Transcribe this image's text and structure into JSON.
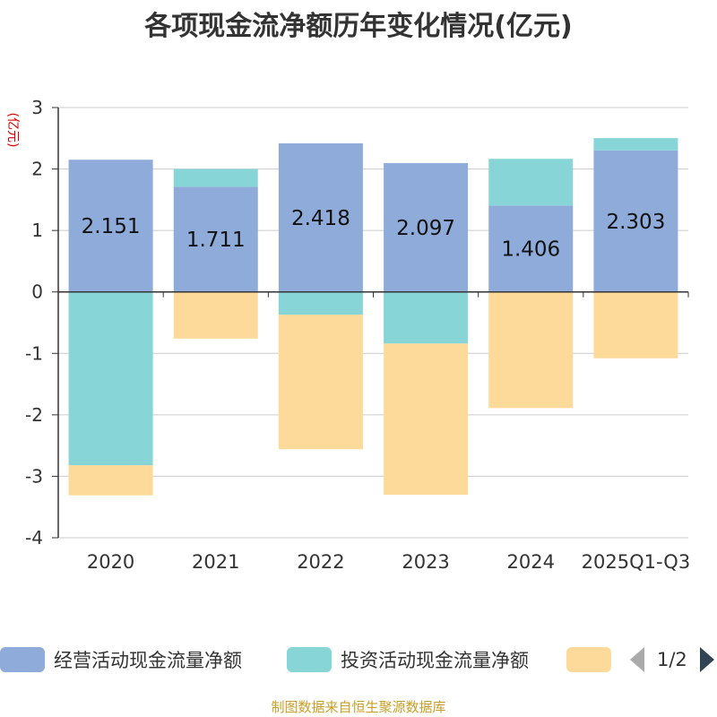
{
  "chart_data": {
    "type": "bar",
    "stacked": true,
    "title": "各项现金流净额历年变化情况(亿元)",
    "ylabel": "(亿元)",
    "xlabel": "",
    "ylim": [
      -4,
      3
    ],
    "yticks": [
      3,
      2,
      1,
      0,
      -1,
      -2,
      -3,
      -4
    ],
    "grid": true,
    "categories": [
      "2020",
      "2021",
      "2022",
      "2023",
      "2024",
      "2025Q1-Q3"
    ],
    "series": [
      {
        "name": "经营活动现金流量净额",
        "color": "#8eabda",
        "values": [
          2.151,
          1.711,
          2.418,
          2.097,
          1.406,
          2.303
        ],
        "labels": [
          "2.151",
          "1.711",
          "2.418",
          "2.097",
          "1.406",
          "2.303"
        ]
      },
      {
        "name": "投资活动现金流量净额",
        "color": "#88d5d8",
        "values": [
          -2.82,
          0.29,
          -0.37,
          -0.84,
          0.76,
          0.2
        ]
      },
      {
        "name": "",
        "color": "#fdd99a",
        "values": [
          -0.49,
          -0.76,
          -2.19,
          -2.46,
          -1.89,
          -1.08
        ]
      }
    ],
    "legend_position": "bottom"
  },
  "legend": {
    "pager_text": "1/2"
  },
  "source": "制图数据来自恒生聚源数据库"
}
